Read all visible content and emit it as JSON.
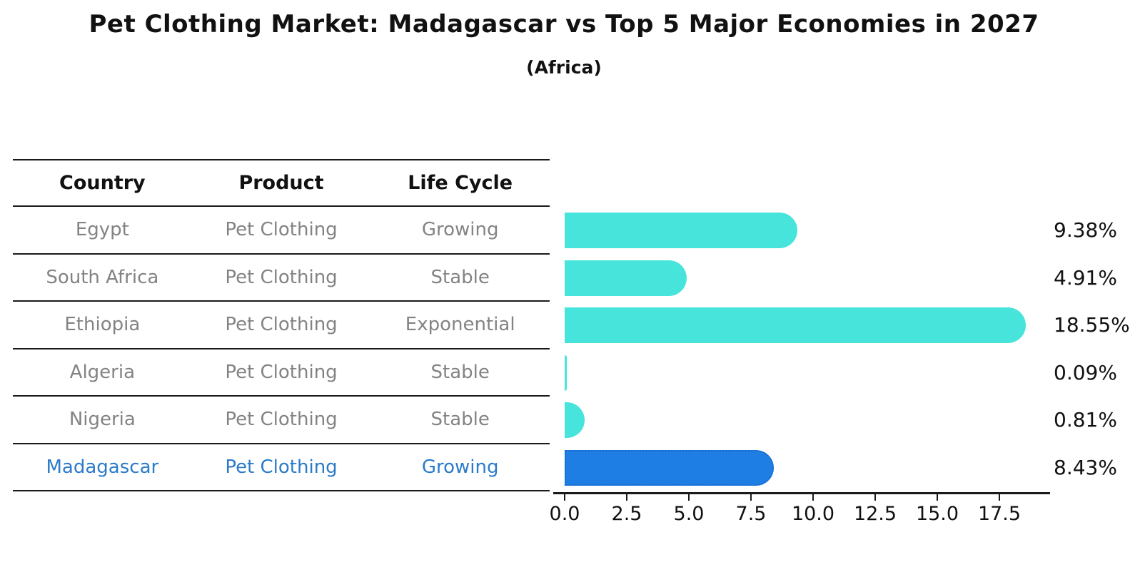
{
  "title": "Pet Clothing Market: Madagascar vs Top 5 Major Economies in 2027",
  "subtitle": "(Africa)",
  "table": {
    "headers": [
      "Country",
      "Product",
      "Life Cycle"
    ],
    "rows": [
      {
        "country": "Egypt",
        "product": "Pet Clothing",
        "life_cycle": "Growing",
        "highlighted": false
      },
      {
        "country": "South Africa",
        "product": "Pet Clothing",
        "life_cycle": "Stable",
        "highlighted": false
      },
      {
        "country": "Ethiopia",
        "product": "Pet Clothing",
        "life_cycle": "Exponential",
        "highlighted": false
      },
      {
        "country": "Algeria",
        "product": "Pet Clothing",
        "life_cycle": "Stable",
        "highlighted": false
      },
      {
        "country": "Nigeria",
        "product": "Pet Clothing",
        "life_cycle": "Stable",
        "highlighted": false
      },
      {
        "country": "Madagascar",
        "product": "Pet Clothing",
        "life_cycle": "Growing",
        "highlighted": true
      }
    ]
  },
  "chart_data": {
    "type": "bar",
    "orientation": "horizontal",
    "title": "Pet Clothing Market: Madagascar vs Top 5 Major Economies in 2027",
    "subtitle": "(Africa)",
    "categories": [
      "Egypt",
      "South Africa",
      "Ethiopia",
      "Algeria",
      "Nigeria",
      "Madagascar"
    ],
    "values": [
      9.38,
      4.91,
      18.55,
      0.09,
      0.81,
      8.43
    ],
    "value_labels": [
      "9.38%",
      "4.91%",
      "18.55%",
      "0.09%",
      "0.81%",
      "8.43%"
    ],
    "x_ticks": [
      0.0,
      2.5,
      5.0,
      7.5,
      10.0,
      12.5,
      15.0,
      17.5
    ],
    "x_tick_labels": [
      "0.0",
      "2.5",
      "5.0",
      "7.5",
      "10.0",
      "12.5",
      "15.0",
      "17.5"
    ],
    "xlim": [
      0,
      19.5
    ],
    "grid": false,
    "legend": null,
    "highlight_index": 5
  },
  "colors": {
    "bar": "#47e4dc",
    "highlight_bar": "#1e7ee3",
    "highlight_border": "#1668cf",
    "highlight_text": "#2b7bc9",
    "row_text": "#838383",
    "header_text": "#111111",
    "line": "#1a1a1a"
  }
}
